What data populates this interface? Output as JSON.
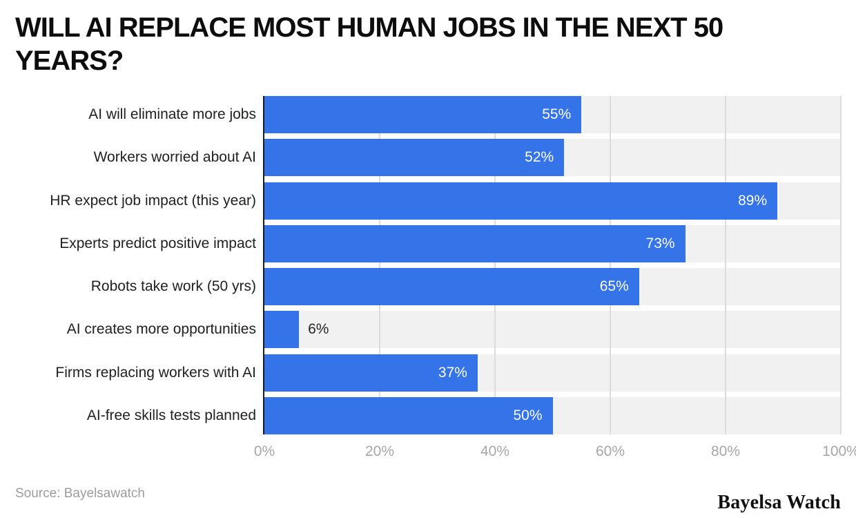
{
  "title": "WILL AI REPLACE MOST HUMAN JOBS IN THE NEXT 50 YEARS?",
  "source": "Source: Bayelsawatch",
  "brand": "Bayelsa Watch",
  "colors": {
    "bar": "#3473e8",
    "track": "#f1f1f1",
    "grid": "#dcdcdc",
    "axis": "#1c1c1c",
    "value_inside": "#ffffff",
    "value_outside": "#262626",
    "tick": "#a6a6a6"
  },
  "chart_data": {
    "type": "bar",
    "orientation": "horizontal",
    "title": "WILL AI REPLACE MOST HUMAN JOBS IN THE NEXT 50 YEARS?",
    "categories": [
      "AI will eliminate more jobs",
      "Workers worried about AI",
      "HR expect job impact (this year)",
      "Experts predict positive impact",
      "Robots take work (50 yrs)",
      "AI creates more opportunities",
      "Firms replacing workers with AI",
      "AI-free skills tests planned"
    ],
    "values": [
      55,
      52,
      89,
      73,
      65,
      6,
      37,
      50
    ],
    "value_suffix": "%",
    "xlabel": "",
    "ylabel": "",
    "xlim": [
      0,
      100
    ],
    "x_ticks": [
      "0%",
      "20%",
      "40%",
      "60%",
      "80%",
      "100%"
    ],
    "x_tick_values": [
      0,
      20,
      40,
      60,
      80,
      100
    ],
    "grid": true,
    "legend": false,
    "value_label_placement": "inside-end (outside-end for small bars)"
  }
}
